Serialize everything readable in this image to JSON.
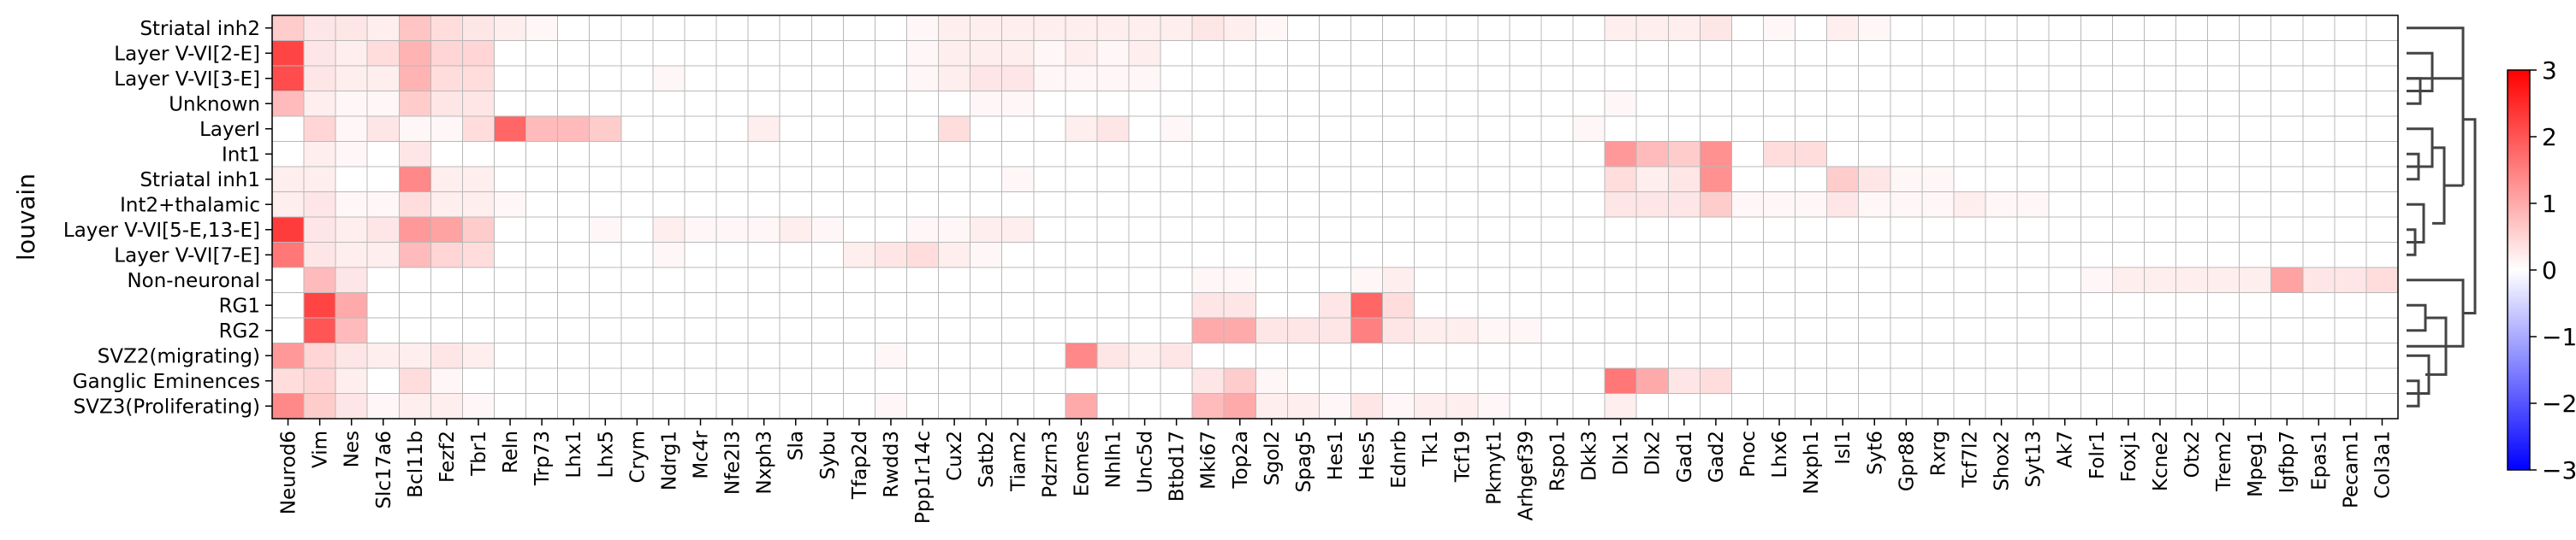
{
  "chart_data": {
    "type": "heatmap",
    "title": "",
    "xlabel": "",
    "ylabel": "louvain",
    "rows": [
      "Striatal inh2",
      "Layer V-VI[2-E]",
      "Layer V-VI[3-E]",
      "Unknown",
      "LayerI",
      "Int1",
      "Striatal inh1",
      "Int2+thalamic",
      "Layer V-VI[5-E,13-E]",
      "Layer V-VI[7-E]",
      "Non-neuronal",
      "RG1",
      "RG2",
      "SVZ2(migrating)",
      "Ganglic Eminences",
      "SVZ3(Proliferating)"
    ],
    "columns": [
      "Neurod6",
      "Vim",
      "Nes",
      "Slc17a6",
      "Bcl11b",
      "Fezf2",
      "Tbr1",
      "Reln",
      "Trp73",
      "Lhx1",
      "Lhx5",
      "Crym",
      "Ndrg1",
      "Mc4r",
      "Nfe2l3",
      "Nxph3",
      "Sla",
      "Sybu",
      "Tfap2d",
      "Rwdd3",
      "Ppp1r14c",
      "Cux2",
      "Satb2",
      "Tiam2",
      "Pdzrn3",
      "Eomes",
      "Nhlh1",
      "Unc5d",
      "Btbd17",
      "Mki67",
      "Top2a",
      "Sgol2",
      "Spag5",
      "Hes1",
      "Hes5",
      "Ednrb",
      "Tk1",
      "Tcf19",
      "Pkmyt1",
      "Arhgef39",
      "Rspo1",
      "Dkk3",
      "Dlx1",
      "Dlx2",
      "Gad1",
      "Gad2",
      "Pnoc",
      "Lhx6",
      "Nxph1",
      "Isl1",
      "Syt6",
      "Gpr88",
      "Rxrg",
      "Tcf7l2",
      "Shox2",
      "Syt13",
      "Ak7",
      "Folr1",
      "Foxj1",
      "Kcne2",
      "Otx2",
      "Trem2",
      "Mpeg1",
      "Igfbp7",
      "Epas1",
      "Pecam1",
      "Col3a1"
    ],
    "values": [
      [
        0.6,
        0.3,
        0.3,
        0.2,
        0.7,
        0.4,
        0.3,
        0.2,
        0.1,
        0,
        0,
        0,
        0,
        0,
        0,
        0,
        0,
        0,
        0,
        0,
        0.1,
        0.2,
        0.2,
        0.2,
        0.2,
        0.2,
        0.2,
        0.2,
        0.2,
        0.3,
        0.2,
        0.1,
        0,
        0,
        0,
        0,
        0,
        0,
        0,
        0,
        0,
        0,
        0.2,
        0.2,
        0.2,
        0.3,
        0,
        0.1,
        0,
        0.2,
        0.1,
        0,
        0,
        0,
        0,
        0,
        0,
        0,
        0,
        0,
        0,
        0,
        0,
        0,
        0,
        0,
        0
      ],
      [
        2.2,
        0.3,
        0.2,
        0.4,
        0.9,
        0.5,
        0.5,
        0,
        0,
        0,
        0,
        0,
        0,
        0,
        0,
        0,
        0,
        0,
        0,
        0,
        0.1,
        0.2,
        0.2,
        0.2,
        0.1,
        0.2,
        0.1,
        0.2,
        0,
        0,
        0,
        0,
        0,
        0,
        0,
        0,
        0,
        0,
        0,
        0,
        0,
        0,
        0,
        0,
        0,
        0,
        0,
        0,
        0,
        0,
        0,
        0,
        0,
        0,
        0,
        0,
        0,
        0,
        0,
        0,
        0,
        0,
        0,
        0,
        0,
        0,
        0
      ],
      [
        2.1,
        0.3,
        0.2,
        0.2,
        0.9,
        0.4,
        0.4,
        0,
        0,
        0,
        0,
        0,
        0.1,
        0,
        0,
        0,
        0,
        0,
        0,
        0,
        0.1,
        0.2,
        0.3,
        0.3,
        0.1,
        0.1,
        0.1,
        0.1,
        0,
        0,
        0,
        0,
        0,
        0,
        0,
        0,
        0,
        0,
        0,
        0,
        0,
        0,
        0,
        0,
        0,
        0,
        0,
        0,
        0,
        0,
        0,
        0,
        0,
        0,
        0,
        0,
        0,
        0,
        0,
        0,
        0,
        0,
        0,
        0,
        0,
        0,
        0
      ],
      [
        0.8,
        0.2,
        0.1,
        0.1,
        0.6,
        0.3,
        0.3,
        0,
        0,
        0,
        0,
        0,
        0,
        0,
        0,
        0,
        0,
        0,
        0,
        0,
        0,
        0,
        0.1,
        0.1,
        0,
        0,
        0,
        0,
        0,
        0,
        0,
        0,
        0,
        0,
        0,
        0,
        0,
        0,
        0,
        0,
        0,
        0,
        0.1,
        0,
        0,
        0,
        0,
        0,
        0,
        0,
        0,
        0,
        0,
        0,
        0,
        0,
        0,
        0,
        0,
        0,
        0,
        0,
        0,
        0,
        0,
        0,
        0
      ],
      [
        0,
        0.5,
        0.1,
        0.3,
        0.1,
        0.1,
        0.4,
        1.8,
        0.8,
        0.8,
        0.6,
        0,
        0,
        0,
        0,
        0.2,
        0,
        0,
        0,
        0,
        0,
        0.4,
        0,
        0,
        0,
        0.2,
        0.3,
        0,
        0.1,
        0,
        0,
        0,
        0,
        0,
        0,
        0,
        0,
        0,
        0,
        0,
        0,
        0.1,
        0,
        0,
        0,
        0,
        0,
        0,
        0,
        0,
        0,
        0,
        0,
        0,
        0,
        0,
        0,
        0,
        0,
        0,
        0,
        0,
        0,
        0,
        0,
        0,
        0
      ],
      [
        0,
        0.2,
        0.1,
        0,
        0.3,
        0,
        0,
        0,
        0,
        0,
        0,
        0,
        0,
        0,
        0,
        0,
        0,
        0,
        0,
        0,
        0,
        0,
        0,
        0,
        0,
        0,
        0,
        0,
        0,
        0,
        0,
        0,
        0,
        0,
        0,
        0,
        0,
        0,
        0,
        0,
        0,
        0,
        1.2,
        0.8,
        0.6,
        1.3,
        0,
        0.4,
        0.4,
        0,
        0,
        0,
        0,
        0,
        0,
        0,
        0,
        0,
        0,
        0,
        0,
        0,
        0,
        0,
        0,
        0,
        0
      ],
      [
        0.2,
        0.2,
        0,
        0,
        1.4,
        0.2,
        0.2,
        0,
        0,
        0,
        0,
        0,
        0,
        0,
        0,
        0,
        0,
        0,
        0,
        0,
        0,
        0,
        0,
        0.1,
        0,
        0,
        0,
        0,
        0,
        0,
        0,
        0,
        0,
        0,
        0,
        0,
        0,
        0,
        0,
        0,
        0,
        0,
        0.4,
        0.2,
        0.3,
        1.3,
        0,
        0,
        0,
        0.6,
        0.3,
        0.1,
        0.1,
        0,
        0,
        0,
        0,
        0,
        0,
        0,
        0,
        0,
        0,
        0,
        0,
        0,
        0
      ],
      [
        0.2,
        0.3,
        0.1,
        0.1,
        0.4,
        0.2,
        0.2,
        0.1,
        0,
        0,
        0,
        0,
        0,
        0,
        0,
        0,
        0,
        0,
        0,
        0,
        0,
        0,
        0,
        0,
        0,
        0,
        0,
        0,
        0,
        0,
        0,
        0,
        0,
        0,
        0,
        0,
        0,
        0,
        0,
        0,
        0,
        0,
        0.3,
        0.3,
        0.3,
        0.6,
        0.1,
        0.1,
        0.1,
        0.3,
        0.1,
        0.1,
        0.1,
        0.2,
        0.1,
        0.1,
        0,
        0,
        0,
        0,
        0,
        0,
        0,
        0,
        0,
        0,
        0
      ],
      [
        2.3,
        0.3,
        0.2,
        0.3,
        1.2,
        1.1,
        0.6,
        0,
        0,
        0,
        0.1,
        0,
        0.2,
        0.1,
        0.1,
        0.1,
        0.2,
        0.1,
        0,
        0,
        0.1,
        0.1,
        0.2,
        0.2,
        0,
        0,
        0,
        0,
        0,
        0,
        0,
        0,
        0,
        0,
        0,
        0,
        0,
        0,
        0,
        0,
        0,
        0,
        0,
        0,
        0,
        0,
        0,
        0,
        0,
        0,
        0,
        0,
        0,
        0,
        0,
        0,
        0,
        0,
        0,
        0,
        0,
        0,
        0,
        0,
        0,
        0,
        0
      ],
      [
        1.6,
        0.3,
        0.2,
        0.2,
        0.8,
        0.5,
        0.4,
        0,
        0,
        0,
        0,
        0,
        0.1,
        0,
        0,
        0,
        0,
        0,
        0.2,
        0.3,
        0.4,
        0.2,
        0.1,
        0,
        0,
        0,
        0,
        0,
        0,
        0,
        0,
        0,
        0,
        0,
        0,
        0,
        0,
        0,
        0,
        0,
        0,
        0,
        0,
        0,
        0,
        0,
        0,
        0,
        0,
        0,
        0,
        0,
        0,
        0,
        0,
        0,
        0,
        0,
        0,
        0,
        0,
        0,
        0,
        0,
        0,
        0,
        0
      ],
      [
        0,
        0.8,
        0.3,
        0,
        0,
        0,
        0,
        0,
        0,
        0,
        0,
        0,
        0,
        0,
        0,
        0,
        0,
        0,
        0,
        0,
        0,
        0,
        0,
        0,
        0,
        0,
        0,
        0,
        0,
        0.1,
        0.1,
        0,
        0,
        0,
        0.1,
        0.2,
        0,
        0,
        0,
        0,
        0,
        0,
        0,
        0,
        0,
        0,
        0,
        0,
        0,
        0,
        0,
        0,
        0,
        0,
        0,
        0,
        0,
        0.1,
        0.2,
        0.2,
        0.2,
        0.2,
        0.2,
        1.1,
        0.3,
        0.3,
        0.4
      ],
      [
        0,
        2.2,
        1.0,
        0,
        0,
        0,
        0,
        0,
        0,
        0,
        0,
        0,
        0,
        0,
        0,
        0,
        0,
        0,
        0,
        0,
        0,
        0,
        0,
        0,
        0,
        0,
        0,
        0,
        0,
        0.3,
        0.3,
        0,
        0,
        0.3,
        1.8,
        0.4,
        0,
        0,
        0,
        0,
        0,
        0,
        0,
        0,
        0,
        0,
        0,
        0,
        0,
        0,
        0,
        0,
        0,
        0,
        0,
        0,
        0,
        0,
        0,
        0,
        0,
        0,
        0,
        0,
        0,
        0,
        0
      ],
      [
        0,
        2.0,
        0.8,
        0,
        0,
        0,
        0,
        0,
        0,
        0,
        0,
        0,
        0,
        0,
        0,
        0,
        0,
        0,
        0,
        0,
        0,
        0,
        0,
        0,
        0,
        0,
        0,
        0,
        0,
        1.0,
        1.0,
        0.3,
        0.3,
        0.3,
        1.5,
        0.3,
        0.2,
        0.2,
        0.1,
        0.1,
        0,
        0,
        0,
        0,
        0,
        0,
        0,
        0,
        0,
        0,
        0,
        0,
        0,
        0,
        0,
        0,
        0,
        0,
        0,
        0,
        0,
        0,
        0,
        0,
        0,
        0,
        0
      ],
      [
        1.2,
        0.5,
        0.3,
        0.2,
        0.2,
        0.3,
        0.2,
        0,
        0,
        0,
        0,
        0,
        0,
        0,
        0,
        0,
        0,
        0,
        0,
        0.1,
        0,
        0,
        0,
        0,
        0,
        1.4,
        0.3,
        0.2,
        0.3,
        0,
        0,
        0,
        0,
        0,
        0,
        0,
        0,
        0,
        0,
        0,
        0,
        0,
        0,
        0,
        0,
        0,
        0,
        0,
        0,
        0,
        0,
        0,
        0,
        0,
        0,
        0,
        0,
        0,
        0,
        0,
        0,
        0,
        0,
        0,
        0,
        0,
        0
      ],
      [
        0.4,
        0.5,
        0.2,
        0,
        0.4,
        0.1,
        0,
        0,
        0,
        0,
        0,
        0,
        0,
        0,
        0,
        0,
        0,
        0,
        0,
        0,
        0,
        0,
        0,
        0,
        0,
        0,
        0,
        0,
        0,
        0.3,
        0.6,
        0.1,
        0,
        0,
        0,
        0,
        0,
        0,
        0,
        0,
        0,
        0,
        1.6,
        1.0,
        0.3,
        0.4,
        0,
        0,
        0,
        0,
        0,
        0,
        0,
        0,
        0,
        0,
        0,
        0,
        0,
        0,
        0,
        0,
        0,
        0,
        0,
        0,
        0
      ],
      [
        1.4,
        0.6,
        0.3,
        0.1,
        0.2,
        0.2,
        0.1,
        0,
        0,
        0,
        0,
        0,
        0,
        0,
        0,
        0,
        0,
        0,
        0,
        0.1,
        0,
        0,
        0,
        0,
        0,
        1.0,
        0,
        0,
        0,
        0.8,
        1.0,
        0.2,
        0.2,
        0.1,
        0.3,
        0.1,
        0.2,
        0.2,
        0.1,
        0,
        0,
        0,
        0.2,
        0,
        0,
        0,
        0,
        0,
        0,
        0,
        0,
        0,
        0,
        0,
        0,
        0,
        0,
        0,
        0,
        0,
        0,
        0,
        0,
        0,
        0,
        0,
        0
      ]
    ],
    "colormap": [
      "#0000ff",
      "#ffffff",
      "#ff0000"
    ],
    "vmin": -3,
    "vmax": 3,
    "colorbar_ticks": [
      "3",
      "2",
      "1",
      "0",
      "−1",
      "−2",
      "−3"
    ],
    "dendrogram": true,
    "grid": true
  }
}
